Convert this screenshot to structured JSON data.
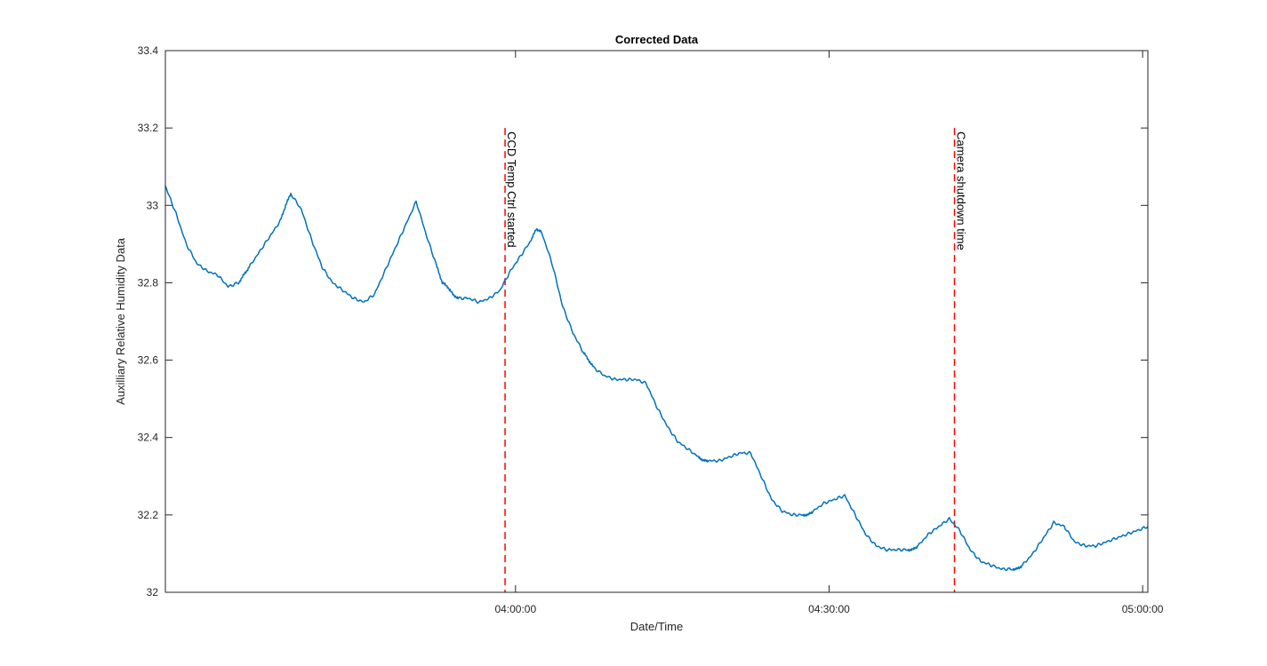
{
  "chart_data": {
    "type": "line",
    "title": "Corrected Data",
    "xlabel": "Date/Time",
    "ylabel": "Auxilliary Relative Humidity Data",
    "xlim_minutes": [
      206.5,
      300.5
    ],
    "ylim": [
      32,
      33.4
    ],
    "yticks": [
      32,
      32.2,
      32.4,
      32.6,
      32.8,
      33,
      33.2,
      33.4
    ],
    "ytick_labels": [
      "32",
      "32.2",
      "32.4",
      "32.6",
      "32.8",
      "33",
      "33.2",
      "33.4"
    ],
    "xticks_minutes": [
      240,
      270,
      300
    ],
    "xtick_labels": [
      "04:00:00",
      "04:30:00",
      "05:00:00"
    ],
    "colors": {
      "series": "#0072bd",
      "marker": "#ff0000",
      "axis": "#262626"
    },
    "series": [
      {
        "name": "Auxilliary Relative Humidity",
        "x_minutes": [
          206.5,
          207.5,
          208.5,
          209.5,
          210.5,
          211.5,
          212.5,
          213.5,
          214.0,
          214.5,
          215.5,
          216.5,
          217.5,
          218.0,
          218.5,
          219.5,
          220.5,
          221.5,
          222.5,
          223.5,
          224.5,
          225.5,
          226.5,
          227.5,
          228.5,
          229.5,
          230.5,
          231.5,
          232.5,
          233.0,
          233.5,
          234.0,
          234.5,
          235.5,
          236.5,
          237.5,
          238.5,
          239.5,
          240.5,
          241.5,
          242.0,
          242.5,
          243.5,
          244.5,
          245.5,
          246.5,
          247.0,
          247.5,
          248.5,
          249.5,
          250.5,
          251.5,
          252.5,
          253.5,
          254.5,
          255.5,
          256.5,
          257.5,
          258.0,
          258.5,
          259.5,
          260.5,
          261.5,
          262.5,
          263.5,
          264.5,
          265.5,
          266.5,
          267.5,
          268.0,
          268.5,
          269.5,
          270.5,
          271.5,
          272.5,
          273.5,
          274.5,
          275.5,
          276.5,
          277.5,
          278.0,
          278.5,
          279.5,
          280.5,
          281.5,
          282.5,
          283.5,
          284.5,
          285.5,
          286.5,
          287.5,
          288.0,
          288.5,
          289.5,
          290.5,
          291.5,
          292.5,
          293.5,
          294.5,
          295.5,
          296.5,
          297.5,
          298.5,
          299.5,
          300.5
        ],
        "values": [
          33.05,
          32.98,
          32.9,
          32.85,
          32.83,
          32.82,
          32.79,
          32.8,
          32.82,
          32.84,
          32.88,
          32.92,
          32.96,
          33.0,
          33.03,
          32.99,
          32.91,
          32.84,
          32.8,
          32.78,
          32.76,
          32.75,
          32.77,
          32.83,
          32.89,
          32.95,
          33.01,
          32.92,
          32.84,
          32.8,
          32.79,
          32.77,
          32.76,
          32.76,
          32.75,
          32.76,
          32.78,
          32.83,
          32.87,
          32.91,
          32.94,
          32.93,
          32.85,
          32.74,
          32.67,
          32.62,
          32.6,
          32.58,
          32.56,
          32.55,
          32.55,
          32.55,
          32.54,
          32.48,
          32.43,
          32.39,
          32.37,
          32.35,
          32.34,
          32.34,
          32.34,
          32.35,
          32.36,
          32.36,
          32.3,
          32.24,
          32.21,
          32.2,
          32.2,
          32.2,
          32.21,
          32.23,
          32.24,
          32.25,
          32.2,
          32.15,
          32.12,
          32.11,
          32.11,
          32.11,
          32.11,
          32.12,
          32.15,
          32.17,
          32.19,
          32.16,
          32.11,
          32.08,
          32.07,
          32.06,
          32.06,
          32.06,
          32.07,
          32.1,
          32.14,
          32.18,
          32.17,
          32.13,
          32.12,
          32.12,
          32.13,
          32.14,
          32.15,
          32.16,
          32.17
        ]
      }
    ],
    "markers": [
      {
        "x_minute": 239.0,
        "y_range": [
          32,
          33.2
        ],
        "label": "CCD Temp Ctrl started"
      },
      {
        "x_minute": 282.0,
        "y_range": [
          32,
          33.2
        ],
        "label": "Camera shutdown time"
      }
    ]
  }
}
